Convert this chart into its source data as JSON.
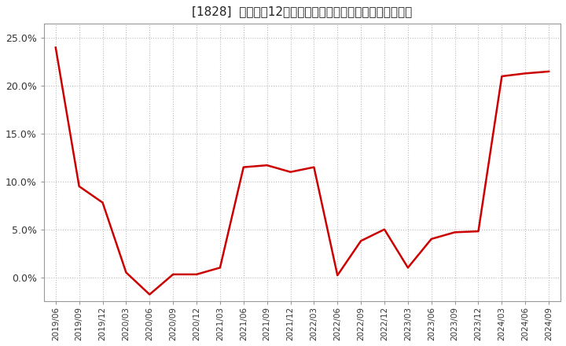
{
  "title": "[1828]  売上高の12か月移動合計の対前年同期増減率の推移",
  "line_color": "#cc0000",
  "background_color": "#ffffff",
  "plot_background": "#ffffff",
  "grid_color": "#bbbbbb",
  "ylim": [
    -0.025,
    0.265
  ],
  "yticks": [
    0.0,
    0.05,
    0.1,
    0.15,
    0.2,
    0.25
  ],
  "dates": [
    "2019/06",
    "2019/09",
    "2019/12",
    "2020/03",
    "2020/06",
    "2020/09",
    "2020/12",
    "2021/03",
    "2021/06",
    "2021/09",
    "2021/12",
    "2022/03",
    "2022/06",
    "2022/09",
    "2022/12",
    "2023/03",
    "2023/06",
    "2023/09",
    "2023/12",
    "2024/03",
    "2024/06",
    "2024/09"
  ],
  "values": [
    0.24,
    0.095,
    0.078,
    0.005,
    -0.018,
    0.003,
    0.003,
    0.01,
    0.115,
    0.117,
    0.11,
    0.115,
    0.002,
    0.038,
    0.05,
    0.01,
    0.04,
    0.047,
    0.048,
    0.21,
    0.213,
    0.215
  ]
}
